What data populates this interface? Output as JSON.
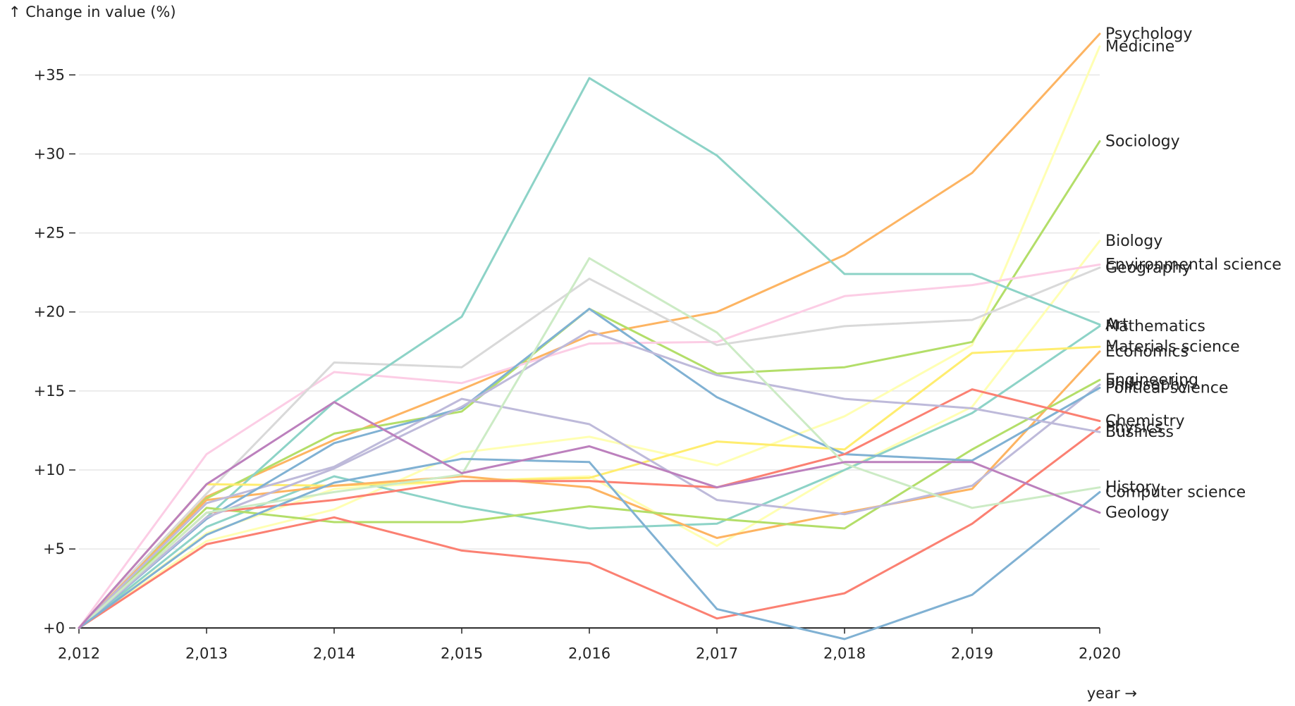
{
  "chart_data": {
    "type": "line",
    "title": "",
    "xlabel": "year →",
    "ylabel": "↑ Change in value (%)",
    "x": [
      2012,
      2013,
      2014,
      2015,
      2016,
      2017,
      2018,
      2019,
      2020
    ],
    "x_tick_labels": [
      "2,012",
      "2,013",
      "2,014",
      "2,015",
      "2,016",
      "2,017",
      "2,018",
      "2,019",
      "2,020"
    ],
    "y_ticks": [
      0,
      5,
      10,
      15,
      20,
      25,
      30,
      35
    ],
    "y_tick_labels": [
      "+0",
      "+5",
      "+10",
      "+15",
      "+20",
      "+25",
      "+30",
      "+35"
    ],
    "ylim": [
      -0.7,
      37.6
    ],
    "grid": "horizontal",
    "series": [
      {
        "name": "Psychology",
        "color": "#fdb462",
        "values": [
          0,
          8.3,
          11.9,
          15.1,
          18.5,
          20.0,
          23.6,
          28.8,
          37.6
        ]
      },
      {
        "name": "Medicine",
        "color": "#ffffb3",
        "values": [
          0,
          5.5,
          7.5,
          11.1,
          12.1,
          10.3,
          13.4,
          17.9,
          36.8
        ]
      },
      {
        "name": "Sociology",
        "color": "#b3de69",
        "values": [
          0,
          8.2,
          12.3,
          13.7,
          20.2,
          16.1,
          16.5,
          18.1,
          30.8
        ]
      },
      {
        "name": "Biology",
        "color": "#ffffb3",
        "values": [
          0,
          6.0,
          8.8,
          9.3,
          9.6,
          5.2,
          10.0,
          14.0,
          24.5
        ]
      },
      {
        "name": "Environmental science",
        "color": "#fccde5",
        "values": [
          0,
          11.0,
          16.2,
          15.5,
          18.0,
          18.1,
          21.0,
          21.7,
          23.0
        ]
      },
      {
        "name": "Geography",
        "color": "#d9d9d9",
        "values": [
          0,
          8.5,
          16.8,
          16.5,
          22.1,
          17.9,
          19.1,
          19.5,
          22.8
        ]
      },
      {
        "name": "Art",
        "color": "#8dd3c7",
        "values": [
          0,
          7.0,
          14.3,
          19.7,
          34.8,
          29.9,
          22.4,
          22.4,
          19.2
        ]
      },
      {
        "name": "Mathematics",
        "color": "#8dd3c7",
        "values": [
          0,
          6.4,
          9.6,
          7.7,
          6.3,
          6.6,
          10.0,
          13.6,
          19.1
        ]
      },
      {
        "name": "Materials science",
        "color": "#ffed6f",
        "values": [
          0,
          9.1,
          9.0,
          9.3,
          9.5,
          11.8,
          11.3,
          17.4,
          17.8
        ]
      },
      {
        "name": "Economics",
        "color": "#fdb462",
        "values": [
          0,
          8.1,
          9.0,
          9.6,
          8.9,
          5.7,
          7.3,
          8.8,
          17.5
        ]
      },
      {
        "name": "Engineering",
        "color": "#b3de69",
        "values": [
          0,
          7.6,
          6.7,
          6.7,
          7.7,
          6.9,
          6.3,
          11.3,
          15.7
        ]
      },
      {
        "name": "Philosophy",
        "color": "#bebada",
        "values": [
          0,
          7.9,
          10.2,
          14.5,
          12.9,
          8.1,
          7.2,
          9.0,
          15.4
        ]
      },
      {
        "name": "Political science",
        "color": "#80b1d3",
        "values": [
          0,
          6.9,
          11.7,
          13.9,
          20.2,
          14.6,
          11.0,
          10.6,
          15.2
        ]
      },
      {
        "name": "Chemistry",
        "color": "#fb8072",
        "values": [
          0,
          7.3,
          8.1,
          9.3,
          9.3,
          8.9,
          11.0,
          15.1,
          13.1
        ]
      },
      {
        "name": "Physics",
        "color": "#fb8072",
        "values": [
          0,
          5.3,
          7.0,
          4.9,
          4.1,
          0.6,
          2.2,
          6.6,
          12.7
        ]
      },
      {
        "name": "Business",
        "color": "#bebada",
        "values": [
          0,
          7.0,
          10.1,
          14.0,
          18.8,
          16.0,
          14.5,
          13.9,
          12.4
        ]
      },
      {
        "name": "History",
        "color": "#ccebc5",
        "values": [
          0,
          7.3,
          8.6,
          9.7,
          23.4,
          18.7,
          10.4,
          7.6,
          8.9
        ]
      },
      {
        "name": "Computer science",
        "color": "#80b1d3",
        "values": [
          0,
          5.9,
          9.2,
          10.7,
          10.5,
          1.2,
          -0.7,
          2.1,
          8.6
        ]
      },
      {
        "name": "Geology",
        "color": "#bc80bd",
        "values": [
          0,
          9.1,
          14.3,
          9.8,
          11.5,
          8.9,
          10.5,
          10.5,
          7.3
        ]
      }
    ]
  }
}
